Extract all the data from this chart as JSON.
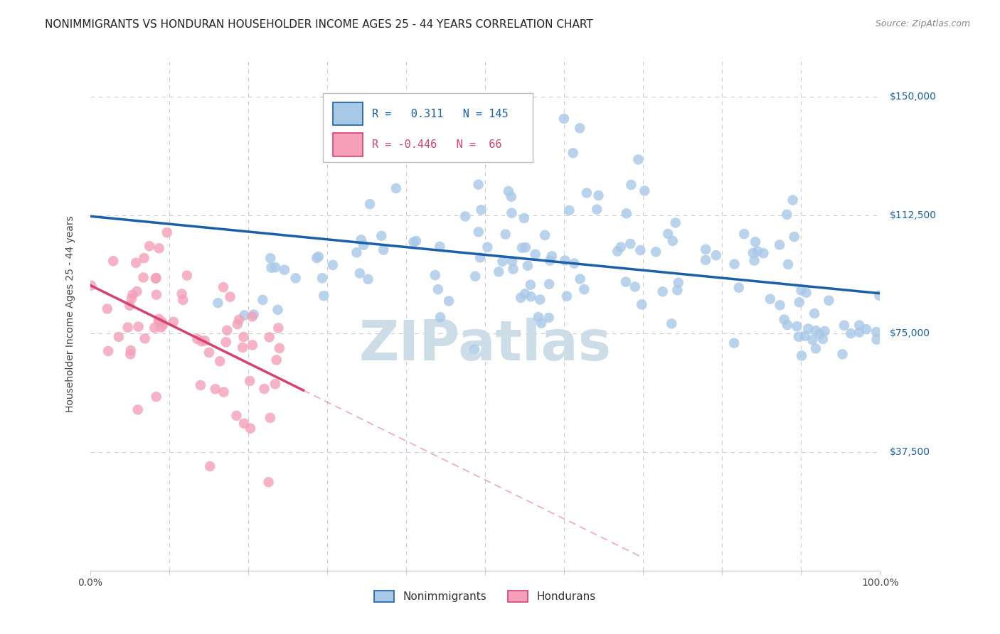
{
  "title": "NONIMMIGRANTS VS HONDURAN HOUSEHOLDER INCOME AGES 25 - 44 YEARS CORRELATION CHART",
  "source": "Source: ZipAtlas.com",
  "ylabel": "Householder Income Ages 25 - 44 years",
  "ytick_labels": [
    "$37,500",
    "$75,000",
    "$112,500",
    "$150,000"
  ],
  "ytick_values": [
    37500,
    75000,
    112500,
    150000
  ],
  "y_min": 0,
  "y_max": 162500,
  "x_min": 0.0,
  "x_max": 1.0,
  "R_nonimm": 0.311,
  "N_nonimm": 145,
  "R_honduran": -0.446,
  "N_honduran": 66,
  "nonimm_color": "#a8c8e8",
  "honduran_color": "#f5a0b8",
  "nonimm_line_color": "#1a5fa8",
  "honduran_line_color": "#d84070",
  "watermark_text": "ZIPatlas",
  "watermark_color": "#ccdde8",
  "title_fontsize": 11,
  "axis_label_fontsize": 10,
  "tick_label_fontsize": 10,
  "legend_fontsize": 11,
  "background_color": "#ffffff",
  "grid_color": "#cccccc"
}
